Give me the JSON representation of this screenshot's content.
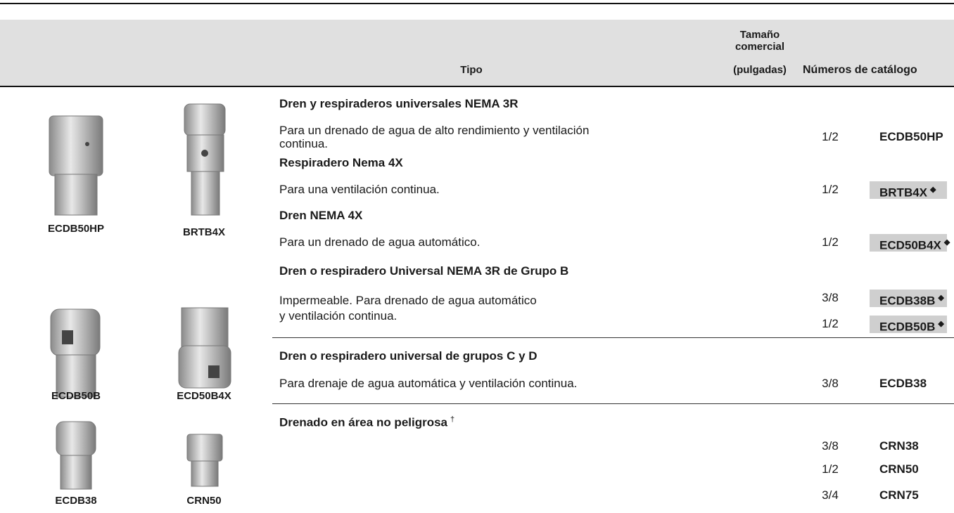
{
  "header": {
    "type": "Tipo",
    "size": [
      "Tamaño",
      "comercial",
      "(pulgadas)"
    ],
    "catalog": "Números de catálogo"
  },
  "images": [
    {
      "label": "ECDB50HP"
    },
    {
      "label": "BRTB4X"
    },
    {
      "label": "ECDB50B"
    },
    {
      "label": "ECD50B4X"
    },
    {
      "label": "ECDB38"
    },
    {
      "label": "CRN50"
    }
  ],
  "groups": [
    {
      "title": "Dren y respiraderos universales NEMA 3R",
      "description": [
        "Para un drenado de agua de alto rendimiento y ventilación",
        "continua."
      ],
      "items": [
        {
          "size": "1/2",
          "catalog": "ECDB50HP"
        }
      ]
    },
    {
      "title": "Respiradero Nema 4X",
      "description": [
        "Para una ventilación continua."
      ],
      "items": [
        {
          "size": "1/2",
          "catalog": "BRTB4X",
          "mark": "◆"
        }
      ]
    },
    {
      "title": "Dren NEMA 4X",
      "description": [
        "Para un drenado de agua automático."
      ],
      "items": [
        {
          "size": "1/2",
          "catalog": "ECD50B4X",
          "mark": "◆"
        }
      ]
    },
    {
      "title": "Dren o respiradero Universal NEMA 3R de Grupo B",
      "description": [
        "Impermeable. Para drenado de agua automático",
        "y ventilación continua."
      ],
      "items": [
        {
          "size": "3/8",
          "catalog": "ECDB38B",
          "mark": "◆"
        },
        {
          "size": "1/2",
          "catalog": "ECDB50B",
          "mark": "◆"
        }
      ]
    },
    {
      "title": "Dren o respiradero universal de grupos C y D",
      "description": [
        "Para drenaje de agua automática y ventilación continua."
      ],
      "items": [
        {
          "size": "3/8",
          "catalog": "ECDB38"
        }
      ]
    },
    {
      "title": "Drenado en área no peligrosa",
      "title_mark": "†",
      "items": [
        {
          "size": "3/8",
          "catalog": "CRN38"
        },
        {
          "size": "1/2",
          "catalog": "CRN50"
        },
        {
          "size": "3/4",
          "catalog": "CRN75"
        }
      ]
    }
  ]
}
